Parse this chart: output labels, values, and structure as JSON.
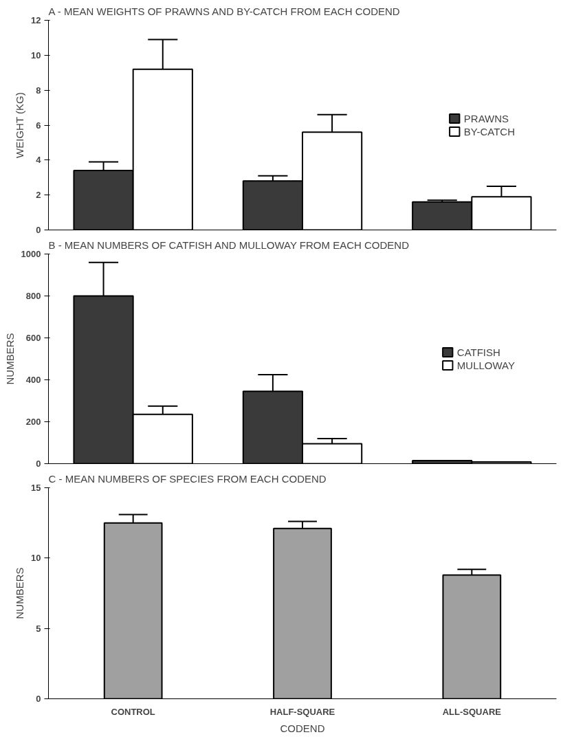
{
  "chart_data": [
    {
      "type": "bar",
      "title": "A - MEAN WEIGHTS OF PRAWNS AND BY-CATCH FROM EACH CODEND",
      "ylabel": "WEIGHT (KG)",
      "categories": [
        null,
        null,
        null
      ],
      "ylim": [
        0,
        12
      ],
      "yticks": [
        0,
        2,
        4,
        6,
        8,
        10,
        12
      ],
      "tick_labels": "y",
      "legend": "right",
      "grid": false,
      "series": [
        {
          "name": "PRAWNS",
          "color": "#3a3a3a",
          "values": [
            3.4,
            2.8,
            1.6
          ],
          "errors": [
            [
              3.4,
              3.9
            ],
            [
              2.8,
              3.1
            ],
            [
              1.6,
              1.7
            ]
          ]
        },
        {
          "name": "BY-CATCH",
          "color": "#ffffff",
          "values": [
            9.2,
            5.6,
            1.9
          ],
          "errors": [
            [
              9.2,
              10.9
            ],
            [
              5.6,
              6.6
            ],
            [
              1.9,
              2.5
            ]
          ]
        }
      ]
    },
    {
      "type": "bar",
      "title": "B - MEAN NUMBERS OF CATFISH AND MULLOWAY FROM EACH CODEND",
      "ylabel": "NUMBERS",
      "categories": [
        null,
        null,
        null
      ],
      "ylim": [
        0,
        1000
      ],
      "yticks": [
        0,
        200,
        400,
        600,
        800,
        1000
      ],
      "tick_labels": "y",
      "legend": "right",
      "grid": false,
      "series": [
        {
          "name": "CATFISH",
          "color": "#3a3a3a",
          "values": [
            800,
            345,
            15
          ],
          "errors": [
            [
              800,
              960
            ],
            [
              345,
              425
            ],
            null
          ]
        },
        {
          "name": "MULLOWAY",
          "color": "#ffffff",
          "values": [
            235,
            95,
            8
          ],
          "errors": [
            [
              235,
              275
            ],
            [
              95,
              120
            ],
            null
          ]
        }
      ]
    },
    {
      "type": "bar",
      "title": "C - MEAN NUMBERS OF SPECIES FROM EACH CODEND",
      "ylabel": "NUMBERS",
      "xlabel": "CODEND",
      "categories": [
        "CONTROL",
        "HALF-SQUARE",
        "ALL-SQUARE"
      ],
      "ylim": [
        0,
        15
      ],
      "yticks": [
        0,
        5,
        10,
        15
      ],
      "legend": false,
      "grid": false,
      "series": [
        {
          "color": "#a0a0a0",
          "values": [
            12.5,
            12.1,
            8.8
          ],
          "errors": [
            [
              12.5,
              13.1
            ],
            [
              12.1,
              12.6
            ],
            [
              8.8,
              9.2
            ]
          ]
        }
      ]
    }
  ]
}
